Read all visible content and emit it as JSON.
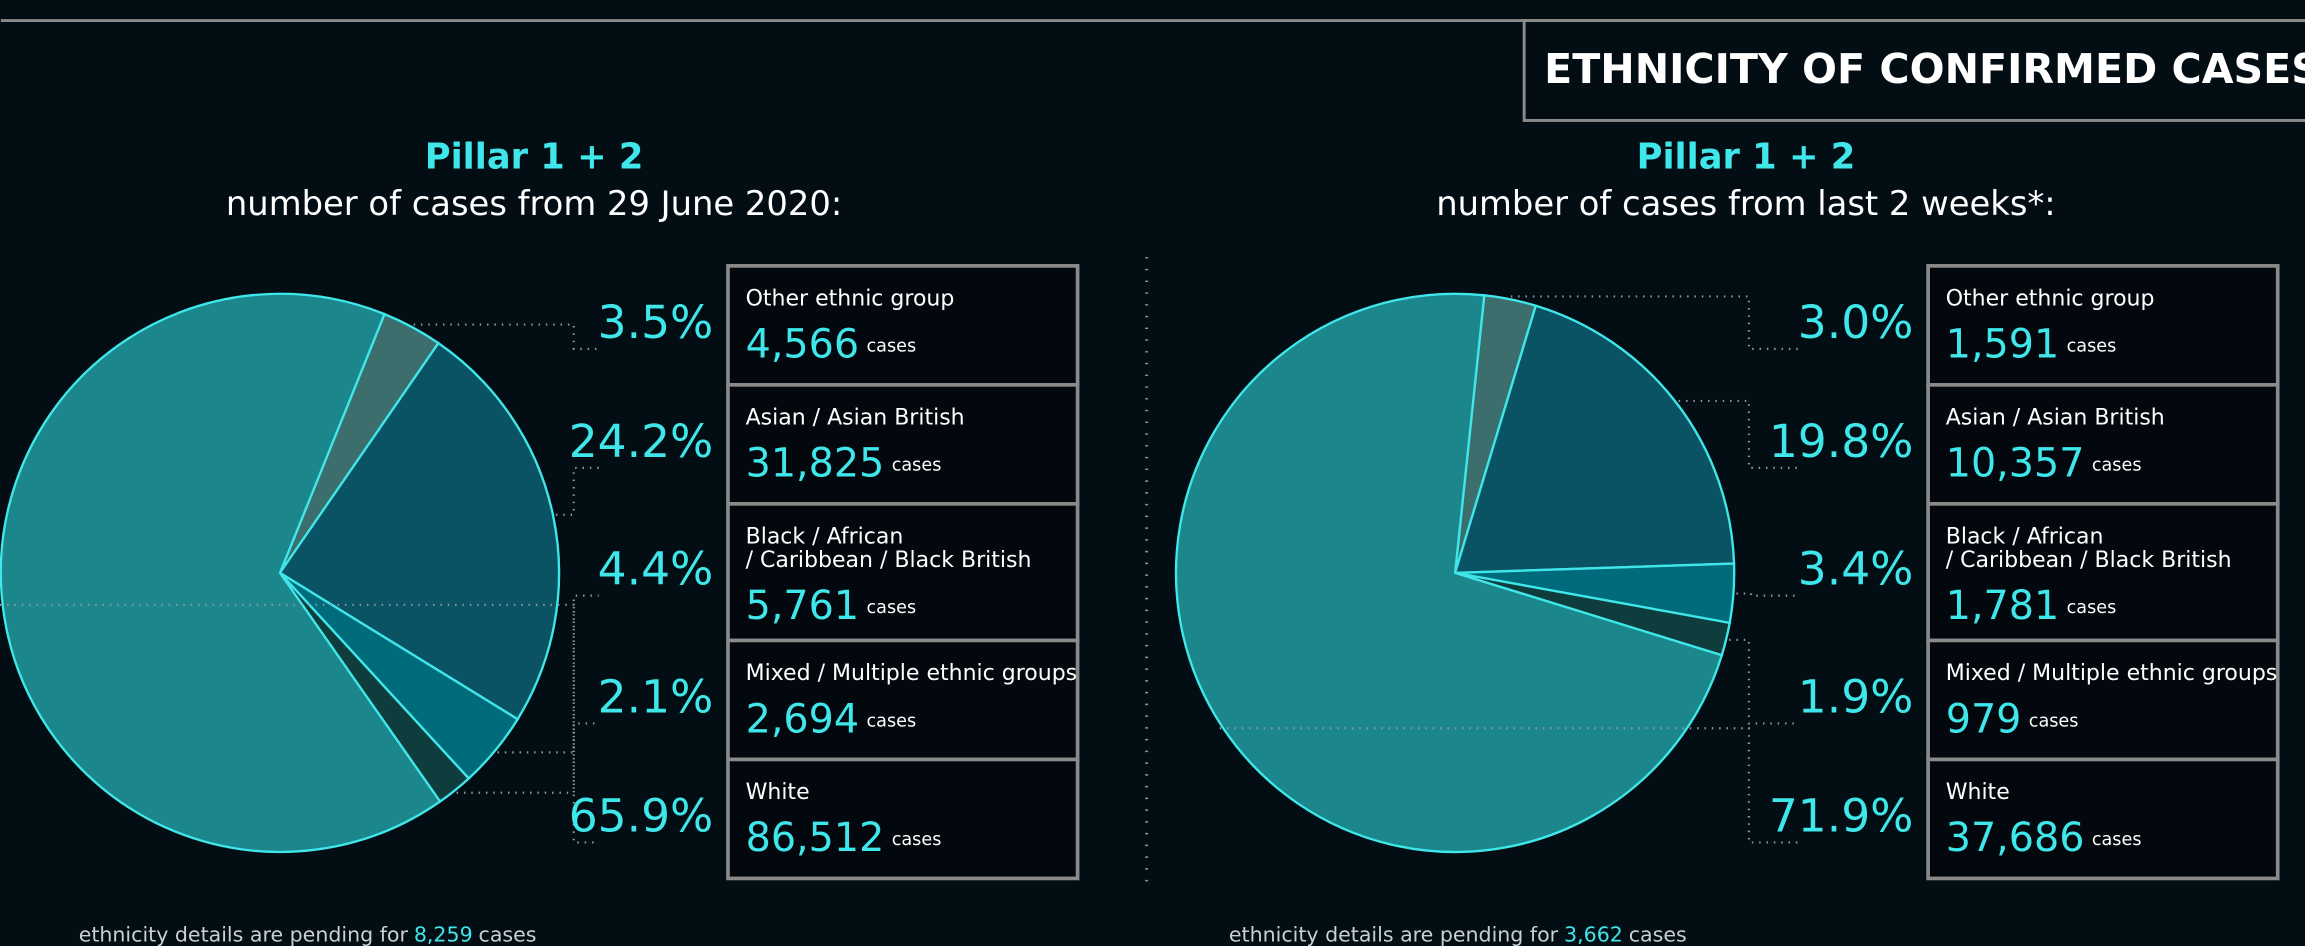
{
  "header": "ETHNICITY OF CONFIRMED CASES",
  "chart_data": [
    {
      "type": "pie",
      "title": "Pillar 1 + 2",
      "subtitle": "number of cases from 29 June 2020:",
      "categories": [
        [
          "Other ethnic group"
        ],
        [
          "Asian / Asian British"
        ],
        [
          "Black / African",
          "/ Caribbean / Black British"
        ],
        [
          "Mixed / Multiple ethnic groups"
        ],
        [
          "White"
        ]
      ],
      "values": [
        3.5,
        24.2,
        4.4,
        2.1,
        65.9
      ],
      "value_labels": [
        "3.5%",
        "24.2%",
        "4.4%",
        "2.1%",
        "65.9%"
      ],
      "counts": [
        4566,
        31825,
        5761,
        2694,
        86512
      ],
      "count_labels": [
        "4,566",
        "31,825",
        "5,761",
        "2,694",
        "86,512"
      ],
      "unit": "cases",
      "colors": [
        "#3b6e6c",
        "#0a5364",
        "#006b7b",
        "#0f3c3c",
        "#1b868b"
      ],
      "footnote": "ethnicity details are pending for",
      "pending": 8259,
      "pending_label": "8,259",
      "footnote_unit": "cases"
    },
    {
      "type": "pie",
      "title": "Pillar 1 + 2",
      "subtitle": "number of cases from last 2 weeks*:",
      "categories": [
        [
          "Other ethnic group"
        ],
        [
          "Asian / Asian British"
        ],
        [
          "Black / African",
          "/ Caribbean / Black British"
        ],
        [
          "Mixed / Multiple ethnic groups"
        ],
        [
          "White"
        ]
      ],
      "values": [
        3.0,
        19.8,
        3.4,
        1.9,
        71.9
      ],
      "value_labels": [
        "3.0%",
        "19.8%",
        "3.4%",
        "1.9%",
        "71.9%"
      ],
      "counts": [
        1591,
        10357,
        1781,
        979,
        37686
      ],
      "count_labels": [
        "1,591",
        "10,357",
        "1,781",
        "979",
        "37,686"
      ],
      "unit": "cases",
      "colors": [
        "#3b6e6c",
        "#0a5364",
        "#006b7b",
        "#0f3c3c",
        "#1b868b"
      ],
      "footnote": "ethnicity details are pending for",
      "pending": 3662,
      "pending_label": "3,662",
      "footnote_unit": "cases"
    }
  ]
}
